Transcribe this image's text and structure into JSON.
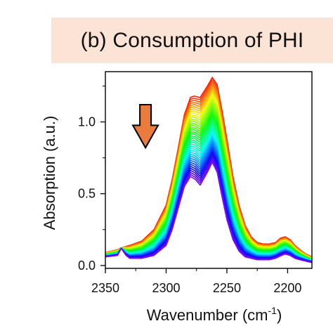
{
  "chart_data": {
    "type": "line",
    "title": "(b) Consumption of PHI",
    "xlabel": "Wavenumber (cm",
    "xlabel_sup": "-1",
    "xlabel_close": ")",
    "ylabel": "Absorption (a.u.)",
    "xlim": [
      2350,
      2180
    ],
    "ylim": [
      -0.02,
      1.35
    ],
    "x_reversed": true,
    "x_ticks": [
      2350,
      2300,
      2250,
      2200
    ],
    "x_tick_labels": [
      "2350",
      "2300",
      "2250",
      "2200"
    ],
    "y_ticks": [
      0.0,
      0.5,
      1.0
    ],
    "y_tick_labels": [
      "0.0",
      "0.5",
      "1.0"
    ],
    "grid": false,
    "legend": "none",
    "series_count": 40,
    "color_progression": "red to violet (rainbow), decreasing over time",
    "first_spectrum": {
      "x": [
        2350,
        2340,
        2338,
        2330,
        2320,
        2310,
        2300,
        2295,
        2290,
        2285,
        2280,
        2277,
        2272,
        2266,
        2262,
        2258,
        2254,
        2250,
        2245,
        2240,
        2235,
        2230,
        2225,
        2220,
        2215,
        2210,
        2206,
        2202,
        2198,
        2194,
        2190,
        2185,
        2180
      ],
      "y": [
        0.09,
        0.11,
        0.12,
        0.14,
        0.17,
        0.25,
        0.42,
        0.6,
        0.82,
        1.05,
        1.17,
        1.18,
        1.17,
        1.25,
        1.31,
        1.26,
        1.08,
        0.88,
        0.62,
        0.42,
        0.28,
        0.2,
        0.16,
        0.15,
        0.15,
        0.16,
        0.19,
        0.2,
        0.18,
        0.14,
        0.11,
        0.08,
        0.06
      ]
    },
    "last_spectrum": {
      "x": [
        2350,
        2340,
        2337,
        2333,
        2330,
        2320,
        2310,
        2300,
        2295,
        2290,
        2285,
        2280,
        2276,
        2272,
        2266,
        2262,
        2258,
        2254,
        2250,
        2245,
        2240,
        2235,
        2230,
        2225,
        2220,
        2215,
        2210,
        2205,
        2202,
        2198,
        2194,
        2190,
        2185,
        2180
      ],
      "y": [
        0.06,
        0.07,
        0.12,
        0.07,
        0.05,
        0.05,
        0.07,
        0.14,
        0.25,
        0.4,
        0.55,
        0.62,
        0.6,
        0.56,
        0.65,
        0.72,
        0.65,
        0.48,
        0.32,
        0.18,
        0.1,
        0.06,
        0.05,
        0.04,
        0.04,
        0.04,
        0.05,
        0.07,
        0.08,
        0.07,
        0.05,
        0.04,
        0.03,
        0.02
      ]
    },
    "annotation": {
      "type": "arrow-down",
      "color": "#e97b3c",
      "stroke": "#000000",
      "x": 2317,
      "y_top": 1.12,
      "y_bottom": 0.82
    },
    "colors": {
      "start": "#e02010",
      "end": "#6a2fd8"
    }
  }
}
